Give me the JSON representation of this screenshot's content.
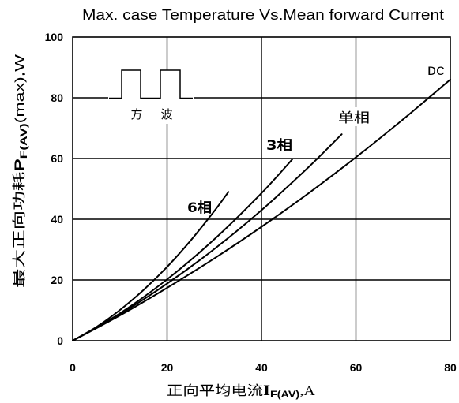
{
  "chart_data": {
    "type": "line",
    "title": "Max. case Temperature Vs.Mean forward Current",
    "xlabel": {
      "text": "正向平均电流",
      "symbol": "I",
      "subscript": "F(AV)",
      "suffix": ",A"
    },
    "ylabel": {
      "text": "最大正向功耗",
      "symbol": "P",
      "subscript": "F(AV)",
      "suffix": "(max),W"
    },
    "xlim": [
      0,
      80
    ],
    "ylim": [
      0,
      100
    ],
    "xticks": [
      0,
      20,
      40,
      60,
      80
    ],
    "yticks": [
      0,
      20,
      40,
      60,
      80,
      100
    ],
    "grid": true,
    "series": [
      {
        "name": "6相",
        "x": [
          0,
          5,
          10,
          15,
          20,
          25,
          30,
          33
        ],
        "y": [
          0,
          4.5,
          10.1,
          16.7,
          24.3,
          33.0,
          42.7,
          49.0
        ]
      },
      {
        "name": "3相",
        "x": [
          0,
          10,
          20,
          30,
          40,
          46.5
        ],
        "y": [
          0,
          9.0,
          20.2,
          33.4,
          48.6,
          59.7
        ]
      },
      {
        "name": "单相",
        "x": [
          0,
          10,
          20,
          30,
          40,
          50,
          57
        ],
        "y": [
          0,
          8.7,
          18.8,
          30.2,
          43.0,
          57.2,
          68.0
        ]
      },
      {
        "name": "DC",
        "x": [
          0,
          10,
          20,
          30,
          40,
          50,
          60,
          70,
          80
        ],
        "y": [
          0,
          8.3,
          17.4,
          27.1,
          37.5,
          48.6,
          60.4,
          72.9,
          86.0
        ]
      }
    ],
    "inset": {
      "icon": "square-wave-icon",
      "labels": [
        "方",
        "波"
      ]
    },
    "colors": {
      "line": "#000000",
      "grid": "#000000",
      "background": "#ffffff"
    }
  }
}
